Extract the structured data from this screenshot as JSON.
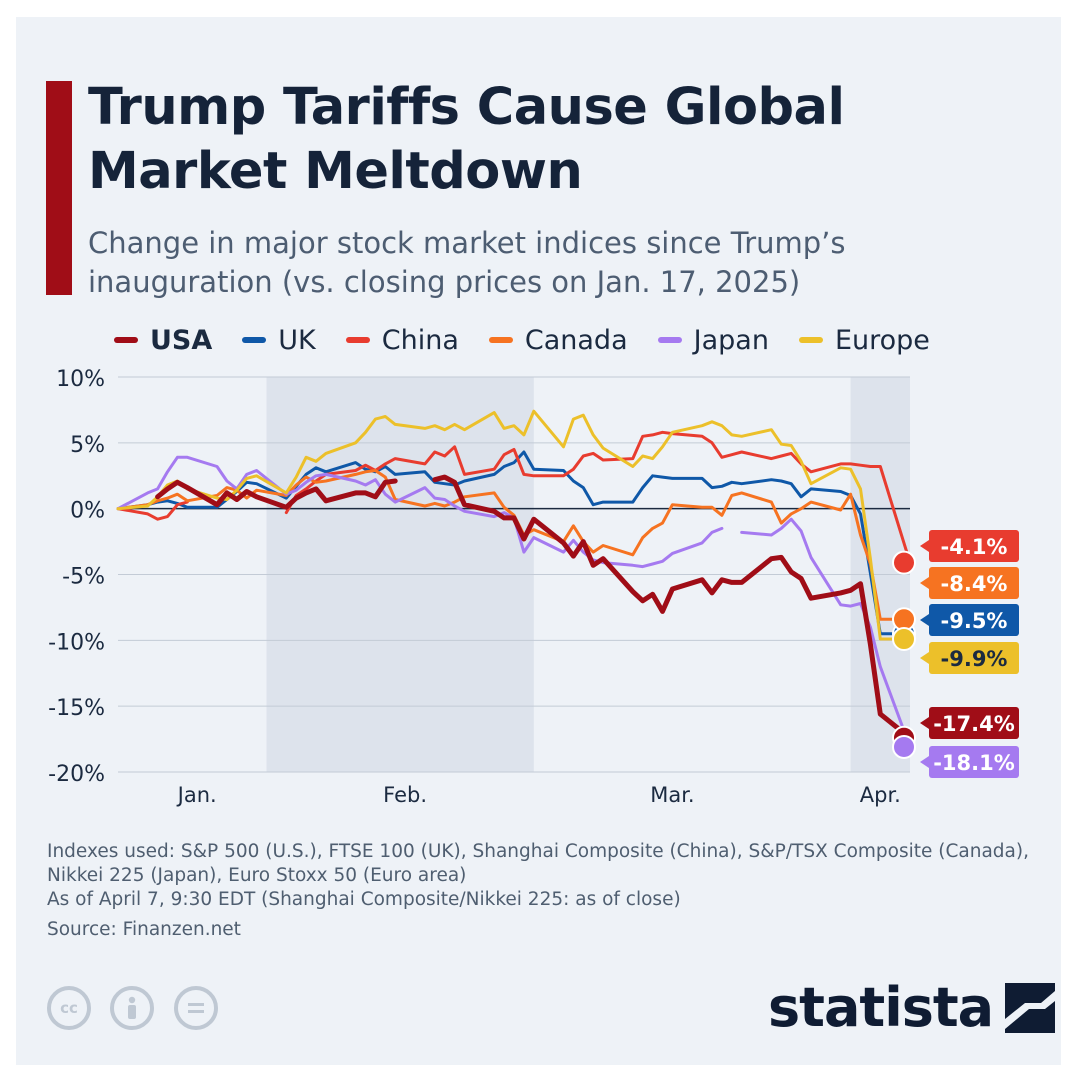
{
  "header": {
    "title": "Trump Tariffs Cause Global Market Meltdown",
    "subtitle": "Change in major stock market indices since Trump’s inauguration (vs. closing prices on Jan. 17, 2025)"
  },
  "chart_data": {
    "type": "line",
    "x": [
      "2025-01-17",
      "2025-01-20",
      "2025-01-21",
      "2025-01-22",
      "2025-01-23",
      "2025-01-24",
      "2025-01-27",
      "2025-01-28",
      "2025-01-29",
      "2025-01-30",
      "2025-01-31",
      "2025-02-03",
      "2025-02-04",
      "2025-02-05",
      "2025-02-06",
      "2025-02-07",
      "2025-02-10",
      "2025-02-11",
      "2025-02-12",
      "2025-02-13",
      "2025-02-14",
      "2025-02-17",
      "2025-02-18",
      "2025-02-19",
      "2025-02-20",
      "2025-02-21",
      "2025-02-24",
      "2025-02-25",
      "2025-02-26",
      "2025-02-27",
      "2025-02-28",
      "2025-03-03",
      "2025-03-04",
      "2025-03-05",
      "2025-03-06",
      "2025-03-07",
      "2025-03-10",
      "2025-03-11",
      "2025-03-12",
      "2025-03-13",
      "2025-03-14",
      "2025-03-17",
      "2025-03-18",
      "2025-03-19",
      "2025-03-20",
      "2025-03-21",
      "2025-03-24",
      "2025-03-25",
      "2025-03-26",
      "2025-03-27",
      "2025-03-28",
      "2025-03-31",
      "2025-04-01",
      "2025-04-02",
      "2025-04-03",
      "2025-04-04",
      "2025-04-07"
    ],
    "x_tick_labels": [
      "Jan.",
      "Feb.",
      "Mar.",
      "Apr."
    ],
    "ylim": [
      -20,
      10
    ],
    "y_ticks": [
      10,
      5,
      0,
      -5,
      -10,
      -15,
      -20
    ],
    "y_tick_labels": [
      "10%",
      "5%",
      "0%",
      "-5%",
      "-10%",
      "-15%",
      "-20%"
    ],
    "grid": true,
    "legend_position": "top",
    "series": [
      {
        "name": "USA",
        "color": "#a00d17",
        "end_label": "-17.4%",
        "values": [
          0,
          null,
          0.9,
          1.5,
          2.0,
          1.6,
          0.3,
          1.2,
          0.7,
          1.3,
          0.9,
          0.1,
          0.8,
          1.2,
          1.5,
          0.6,
          1.2,
          1.2,
          0.9,
          2.0,
          2.1,
          null,
          2.2,
          2.4,
          2.0,
          0.3,
          -0.2,
          -0.7,
          -0.7,
          -2.3,
          -0.8,
          -2.6,
          -3.6,
          -2.5,
          -4.3,
          -3.8,
          -6.3,
          -7.0,
          -6.5,
          -7.8,
          -6.1,
          -5.4,
          -6.4,
          -5.4,
          -5.6,
          -5.6,
          -3.8,
          -3.7,
          -4.8,
          -5.3,
          -6.8,
          -6.4,
          -6.2,
          -5.7,
          -10.3,
          -15.6,
          -17.4
        ]
      },
      {
        "name": "UK",
        "color": "#0f58a8",
        "end_label": "-9.5%",
        "values": [
          0,
          0.3,
          0.5,
          0.6,
          0.4,
          0.1,
          0.1,
          0.7,
          1.3,
          2.0,
          1.9,
          0.8,
          1.7,
          2.6,
          3.1,
          2.8,
          3.5,
          3.0,
          2.8,
          3.2,
          2.6,
          2.8,
          2.0,
          1.9,
          1.8,
          2.1,
          2.6,
          3.2,
          3.5,
          4.3,
          3.0,
          2.9,
          2.1,
          1.6,
          0.3,
          0.5,
          0.5,
          1.6,
          2.5,
          2.4,
          2.3,
          2.3,
          1.6,
          1.7,
          2.0,
          1.9,
          2.2,
          2.1,
          1.9,
          0.9,
          1.5,
          1.3,
          1.0,
          -0.4,
          -4.9,
          -9.5,
          -9.5
        ]
      },
      {
        "name": "China",
        "color": "#e83c2f",
        "end_label": "-4.1%",
        "values": [
          0,
          -0.4,
          -0.8,
          -0.6,
          0.3,
          0.5,
          null,
          null,
          null,
          null,
          null,
          -0.3,
          1.0,
          1.5,
          2.1,
          2.6,
          2.9,
          3.3,
          2.9,
          3.4,
          3.8,
          3.4,
          4.3,
          4.0,
          4.7,
          2.6,
          3.0,
          4.1,
          4.5,
          2.6,
          2.5,
          2.5,
          3.0,
          4.0,
          4.2,
          3.7,
          3.8,
          5.5,
          5.6,
          5.8,
          5.7,
          5.5,
          5.0,
          3.9,
          4.1,
          4.3,
          3.8,
          4.0,
          4.2,
          3.4,
          2.8,
          3.4,
          3.4,
          3.3,
          3.2,
          3.2,
          -4.1
        ]
      },
      {
        "name": "Canada",
        "color": "#f67321",
        "end_label": "-8.4%",
        "values": [
          0,
          0.3,
          0.6,
          0.8,
          1.1,
          0.6,
          1.0,
          1.6,
          1.4,
          0.8,
          1.4,
          1.0,
          1.8,
          2.4,
          2.0,
          2.1,
          2.6,
          2.8,
          2.9,
          2.4,
          0.7,
          0.2,
          0.4,
          0.2,
          0.5,
          0.9,
          1.2,
          0.1,
          -0.5,
          -2.0,
          -1.6,
          -2.5,
          -1.3,
          -2.5,
          -3.3,
          -2.8,
          -3.5,
          -2.2,
          -1.5,
          -1.1,
          0.3,
          0.1,
          0.1,
          -0.5,
          1.0,
          1.2,
          0.5,
          -1.1,
          -0.4,
          0.0,
          0.5,
          -0.1,
          1.1,
          -2.0,
          -4.2,
          -8.4,
          -8.4
        ]
      },
      {
        "name": "Japan",
        "color": "#a57af0",
        "end_label": "-18.1%",
        "values": [
          0,
          1.2,
          1.5,
          2.8,
          3.9,
          3.9,
          3.2,
          2.1,
          1.5,
          2.6,
          2.9,
          1.1,
          1.4,
          2.0,
          2.5,
          2.6,
          2.1,
          1.8,
          2.2,
          1.1,
          0.5,
          1.6,
          0.8,
          0.7,
          0.2,
          -0.2,
          -0.6,
          -0.3,
          -0.7,
          -3.3,
          -2.2,
          -3.3,
          -2.4,
          -3.3,
          -3.9,
          -4.1,
          -4.3,
          -4.4,
          -4.2,
          -4.0,
          -3.4,
          -2.6,
          -1.8,
          -1.5,
          null,
          -1.8,
          -2.0,
          -1.5,
          -0.8,
          -1.7,
          -3.7,
          -7.3,
          -7.4,
          -7.2,
          -9.0,
          -12.0,
          -18.1
        ]
      },
      {
        "name": "Europe",
        "color": "#ecc02a",
        "end_label": "-9.9%",
        "values": [
          0,
          0.2,
          0.9,
          1.8,
          2.1,
          1.5,
          0.8,
          0.7,
          1.4,
          2.3,
          2.5,
          1.2,
          2.4,
          3.9,
          3.6,
          4.2,
          5.0,
          5.8,
          6.8,
          7.0,
          6.4,
          6.1,
          6.3,
          6.0,
          6.4,
          6.0,
          7.3,
          6.1,
          6.3,
          5.6,
          7.4,
          4.7,
          6.8,
          7.1,
          5.6,
          4.6,
          3.2,
          4.0,
          3.8,
          4.7,
          5.8,
          6.3,
          6.6,
          6.3,
          5.6,
          5.5,
          6.0,
          4.9,
          4.8,
          3.6,
          1.9,
          3.1,
          3.0,
          1.5,
          -3.8,
          -9.9,
          -9.9
        ]
      }
    ],
    "shaded_bands": [
      {
        "from": "2025-02-01",
        "to": "2025-02-28"
      },
      {
        "from": "2025-04-01",
        "to": "2025-04-07"
      }
    ]
  },
  "notes": {
    "indexes": "Indexes used: S&P 500 (U.S.), FTSE 100 (UK), Shanghai Composite (China), S&P/TSX Composite (Canada), Nikkei 225 (Japan), Euro Stoxx 50 (Euro area)",
    "as_of": "As of April 7, 9:30 EDT (Shanghai Composite/Nikkei 225: as of close)",
    "source": "Source: Finanzen.net"
  },
  "footer": {
    "license_icons": [
      "creative-commons-icon",
      "attribution-icon",
      "no-derivatives-icon"
    ],
    "brand": "statista"
  },
  "colors": {
    "accent_bar": "#a00d17",
    "title": "#152339",
    "background": "#eef2f7"
  }
}
